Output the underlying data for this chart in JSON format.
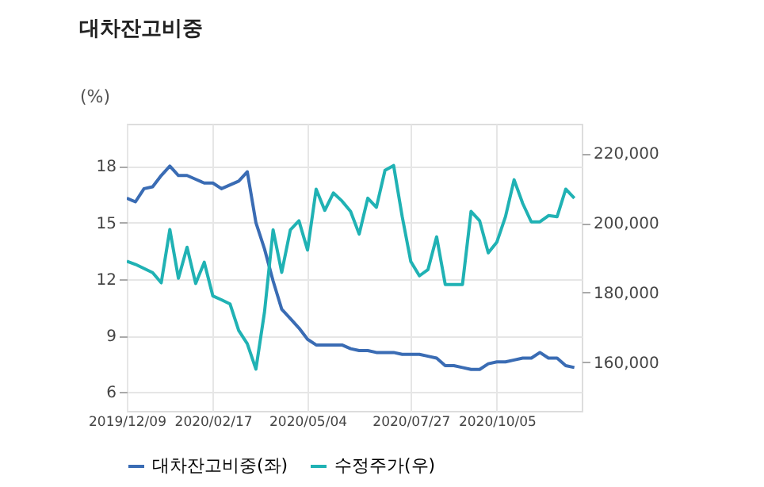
{
  "chart_data": {
    "type": "line",
    "title": "대차잔고비중",
    "ylabel": "(%)",
    "x": [
      "2019-12-09",
      "2019-12-16",
      "2019-12-23",
      "2019-12-30",
      "2020-01-06",
      "2020-01-13",
      "2020-01-20",
      "2020-01-27",
      "2020-02-03",
      "2020-02-10",
      "2020-02-17",
      "2020-02-24",
      "2020-03-02",
      "2020-03-09",
      "2020-03-16",
      "2020-03-23",
      "2020-03-30",
      "2020-04-06",
      "2020-04-13",
      "2020-04-20",
      "2020-04-27",
      "2020-05-04",
      "2020-05-11",
      "2020-05-18",
      "2020-05-25",
      "2020-06-01",
      "2020-06-08",
      "2020-06-15",
      "2020-06-22",
      "2020-06-29",
      "2020-07-06",
      "2020-07-13",
      "2020-07-20",
      "2020-07-27",
      "2020-08-03",
      "2020-08-10",
      "2020-08-17",
      "2020-08-24",
      "2020-08-31",
      "2020-09-07",
      "2020-09-14",
      "2020-09-21",
      "2020-09-28",
      "2020-10-05",
      "2020-10-12",
      "2020-10-19",
      "2020-10-26",
      "2020-11-02",
      "2020-11-09",
      "2020-11-16",
      "2020-11-23",
      "2020-11-30",
      "2020-12-07"
    ],
    "series": [
      {
        "name": "대차잔고비중(좌)",
        "color": "#3a6cb4",
        "axis": "y",
        "values": [
          16.3,
          16.1,
          16.8,
          16.9,
          17.5,
          18.0,
          17.5,
          17.5,
          17.3,
          17.1,
          17.1,
          16.8,
          17.0,
          17.2,
          17.7,
          15.0,
          13.6,
          11.9,
          10.4,
          9.9,
          9.4,
          8.8,
          8.5,
          8.5,
          8.5,
          8.5,
          8.3,
          8.2,
          8.2,
          8.1,
          8.1,
          8.1,
          8.0,
          8.0,
          8.0,
          7.9,
          7.8,
          7.4,
          7.4,
          7.3,
          7.2,
          7.2,
          7.5,
          7.6,
          7.6,
          7.7,
          7.8,
          7.8,
          8.1,
          7.8,
          7.8,
          7.4,
          7.3
        ]
      },
      {
        "name": "수정주가(우)",
        "color": "#20b2b4",
        "axis": "y2",
        "values": [
          189000,
          188100,
          186900,
          185700,
          182800,
          198100,
          184100,
          193000,
          182600,
          188700,
          179000,
          177900,
          176700,
          169100,
          165300,
          158000,
          174400,
          198000,
          185800,
          198000,
          200600,
          192200,
          209700,
          203600,
          208600,
          206300,
          203300,
          196800,
          207100,
          204500,
          215100,
          216500,
          201800,
          188900,
          184800,
          186600,
          196000,
          182300,
          182300,
          182300,
          203300,
          200600,
          191400,
          194500,
          201800,
          212400,
          205600,
          200300,
          200300,
          202100,
          201800,
          209700,
          207100
        ]
      }
    ],
    "xlim": [
      "2019-12-09",
      "2020-12-13"
    ],
    "xticks": [
      {
        "value": "2019-12-09",
        "label": "2019/12/09"
      },
      {
        "value": "2020-02-17",
        "label": "2020/02/17"
      },
      {
        "value": "2020-05-04",
        "label": "2020/05/04"
      },
      {
        "value": "2020-07-27",
        "label": "2020/07/27"
      },
      {
        "value": "2020-10-05",
        "label": "2020/10/05"
      }
    ],
    "ylim": [
      5,
      20.25
    ],
    "yticks": [
      6,
      9,
      12,
      15,
      18
    ],
    "y2lim": [
      146000,
      228500
    ],
    "y2ticks": [
      {
        "value": 160000,
        "label": "160,000"
      },
      {
        "value": 180000,
        "label": "180,000"
      },
      {
        "value": 200000,
        "label": "200,000"
      },
      {
        "value": 220000,
        "label": "220,000"
      }
    ],
    "grid": true,
    "legend": "bottom",
    "marker": "none",
    "line_style": "solid"
  }
}
